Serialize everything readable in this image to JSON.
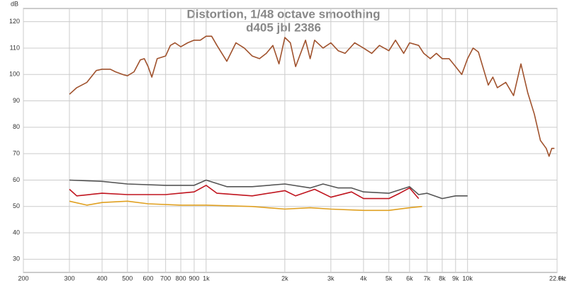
{
  "chart_data": {
    "type": "line",
    "title": "Distortion, 1/48 octave smoothing",
    "subtitle": "d405 jbl 2386",
    "y_label": "dB",
    "x_label": "Hz",
    "log_x": true,
    "grid": true,
    "xlim": [
      200,
      22000
    ],
    "ylim": [
      25,
      125
    ],
    "xticks": [
      200,
      300,
      400,
      500,
      600,
      700,
      800,
      900,
      {
        "value": 1000,
        "label": "1k"
      },
      {
        "value": 2000,
        "label": "2k"
      },
      {
        "value": 3000,
        "label": "3k"
      },
      {
        "value": 4000,
        "label": "4k"
      },
      {
        "value": 5000,
        "label": "5k"
      },
      {
        "value": 6000,
        "label": "6k"
      },
      {
        "value": 7000,
        "label": "7k"
      },
      {
        "value": 8000,
        "label": "8k"
      },
      {
        "value": 9000,
        "label": "9k"
      },
      {
        "value": 10000,
        "label": "10k"
      },
      {
        "value": 22000,
        "label": "22.0k"
      }
    ],
    "yticks": [
      30,
      40,
      50,
      60,
      70,
      80,
      90,
      100,
      110,
      120
    ],
    "series": [
      {
        "color": "#a0522d",
        "x": [
          300,
          320,
          350,
          380,
          400,
          430,
          450,
          480,
          500,
          530,
          560,
          580,
          600,
          620,
          650,
          700,
          730,
          760,
          800,
          850,
          900,
          950,
          1000,
          1050,
          1100,
          1200,
          1300,
          1400,
          1500,
          1600,
          1700,
          1800,
          1900,
          2000,
          2100,
          2200,
          2400,
          2500,
          2600,
          2800,
          3000,
          3200,
          3400,
          3700,
          4000,
          4300,
          4600,
          5000,
          5300,
          5700,
          6000,
          6500,
          6800,
          7200,
          7600,
          8000,
          8500,
          9000,
          9500,
          10000,
          10500,
          11000,
          12000,
          12500,
          13000,
          14000,
          15000,
          16000,
          17000,
          18000,
          19000,
          20000,
          20500,
          21000,
          21500
        ],
        "values": [
          92.5,
          95,
          97,
          101.5,
          102,
          102,
          101,
          100,
          99.5,
          101,
          105.5,
          106,
          103,
          99,
          106,
          107,
          111,
          112,
          110.5,
          112,
          113,
          113,
          114.5,
          114.5,
          111,
          105,
          112,
          110,
          107,
          106,
          108,
          111,
          104,
          114,
          112,
          103,
          113,
          106,
          113,
          110,
          112,
          109,
          108,
          112,
          110,
          108,
          111,
          109,
          113,
          108,
          112,
          111,
          108,
          106,
          108,
          106,
          106,
          103,
          100,
          106,
          110,
          108.5,
          96,
          99,
          95,
          97,
          92,
          104,
          93,
          85,
          75,
          72,
          69,
          72,
          72
        ]
      },
      {
        "color": "#555555",
        "x": [
          300,
          400,
          500,
          700,
          900,
          1000,
          1200,
          1500,
          2000,
          2500,
          2800,
          3200,
          3600,
          4000,
          5000,
          6000,
          6500,
          7000,
          8000,
          9000,
          10000
        ],
        "values": [
          60,
          59.5,
          58.5,
          58,
          58,
          60,
          57.5,
          57.5,
          58.5,
          57,
          58.5,
          57,
          57,
          55.5,
          55,
          57.5,
          54.5,
          55,
          53,
          54,
          54
        ]
      },
      {
        "color": "#c0141e",
        "x": [
          300,
          320,
          400,
          500,
          700,
          900,
          1000,
          1100,
          1500,
          2000,
          2200,
          2600,
          3000,
          3600,
          4000,
          5000,
          5500,
          6000,
          6500
        ],
        "values": [
          56.5,
          54,
          55,
          54.5,
          54.5,
          55.5,
          58,
          55,
          54,
          56,
          54,
          56.5,
          53.5,
          55.5,
          53,
          53,
          55,
          57,
          53
        ]
      },
      {
        "color": "#e0a020",
        "x": [
          300,
          350,
          400,
          500,
          600,
          800,
          1000,
          1500,
          2000,
          2500,
          3000,
          4000,
          5000,
          6000,
          6700
        ],
        "values": [
          52,
          50.5,
          51.5,
          52,
          51,
          50.5,
          50.5,
          50,
          49,
          49.5,
          49,
          48.5,
          48.5,
          49.5,
          50
        ]
      }
    ]
  }
}
